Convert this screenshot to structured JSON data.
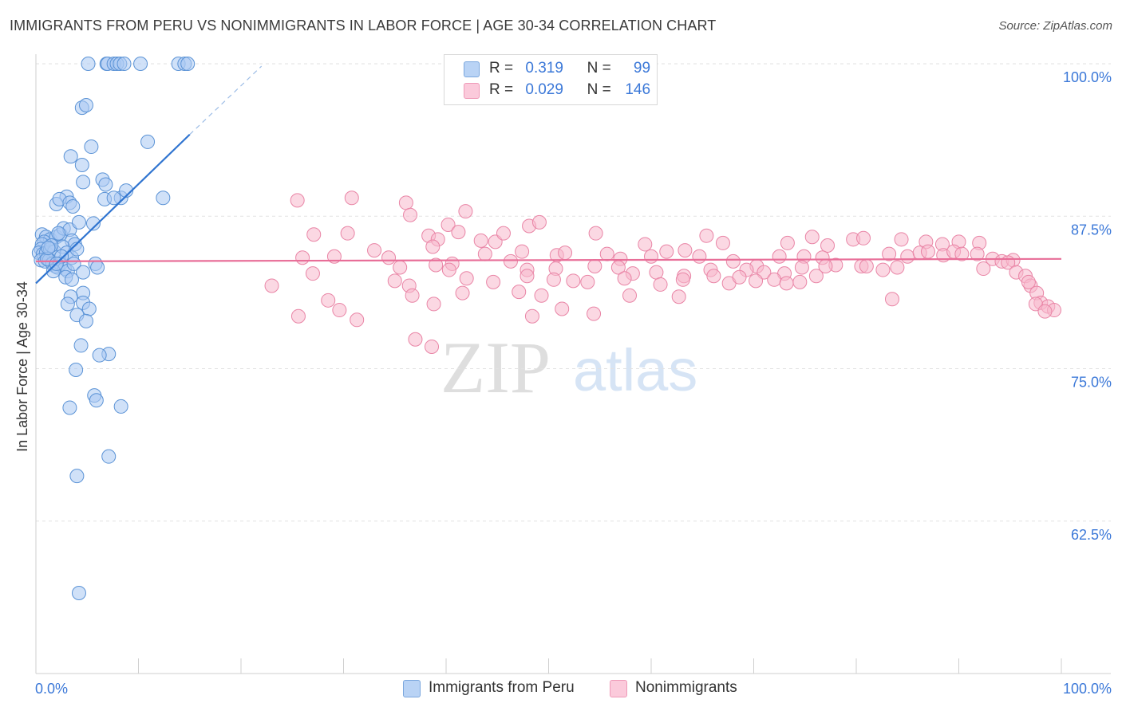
{
  "title": "IMMIGRANTS FROM PERU VS NONIMMIGRANTS IN LABOR FORCE | AGE 30-34 CORRELATION CHART",
  "source": "Source: ZipAtlas.com",
  "watermark": {
    "zip": "ZIP",
    "atlas": "atlas"
  },
  "legend": {
    "r_label": "R =",
    "n_label": "N =",
    "series": [
      {
        "name": "Immigrants from Peru",
        "r": "0.319",
        "n": "99"
      },
      {
        "name": "Nonimmigrants",
        "r": "0.029",
        "n": "146"
      }
    ]
  },
  "colors": {
    "blue_fill": "#a9c9f2",
    "blue_stroke": "#5b93d6",
    "blue_line": "#2f74d0",
    "pink_fill": "#f7b8cc",
    "pink_stroke": "#e985a6",
    "pink_line": "#e86e98",
    "axis_text": "#3b78d8"
  },
  "chart_data": {
    "type": "scatter",
    "title": "IMMIGRANTS FROM PERU VS NONIMMIGRANTS IN LABOR FORCE | AGE 30-34 CORRELATION CHART",
    "xlabel": "",
    "ylabel": "In Labor Force | Age 30-34",
    "xlim": [
      0,
      100
    ],
    "ylim": [
      50,
      100
    ],
    "x_tick_labels": [
      "0.0%",
      "100.0%"
    ],
    "y_ticks": [
      62.5,
      75.0,
      87.5,
      100.0
    ],
    "y_tick_labels": [
      "62.5%",
      "75.0%",
      "87.5%",
      "100.0%"
    ],
    "grid": true,
    "series": [
      {
        "name": "Immigrants from Peru",
        "trend": {
          "x0": 0.0,
          "y0": 82.0,
          "x1": 15.0,
          "y1": 94.2,
          "dash_to_x": 22.0,
          "dash_to_y": 99.8
        },
        "points": [
          [
            5.1,
            100
          ],
          [
            6.9,
            100
          ],
          [
            7.0,
            100
          ],
          [
            7.6,
            100
          ],
          [
            7.9,
            100
          ],
          [
            8.2,
            100
          ],
          [
            8.6,
            100
          ],
          [
            10.2,
            100
          ],
          [
            13.9,
            100
          ],
          [
            14.5,
            100
          ],
          [
            14.8,
            100
          ],
          [
            4.5,
            96.4
          ],
          [
            4.9,
            96.6
          ],
          [
            5.4,
            93.2
          ],
          [
            3.4,
            92.4
          ],
          [
            4.5,
            91.7
          ],
          [
            6.5,
            90.5
          ],
          [
            4.6,
            90.3
          ],
          [
            6.8,
            90.1
          ],
          [
            10.9,
            93.6
          ],
          [
            3.0,
            89.1
          ],
          [
            2.0,
            88.5
          ],
          [
            2.3,
            88.9
          ],
          [
            3.3,
            88.6
          ],
          [
            3.6,
            88.3
          ],
          [
            6.7,
            88.9
          ],
          [
            8.3,
            89.0
          ],
          [
            8.8,
            89.6
          ],
          [
            7.6,
            89.0
          ],
          [
            12.4,
            89.0
          ],
          [
            0.6,
            86.0
          ],
          [
            1.0,
            85.8
          ],
          [
            1.4,
            85.6
          ],
          [
            0.8,
            85.4
          ],
          [
            0.6,
            85.2
          ],
          [
            0.5,
            84.8
          ],
          [
            0.3,
            84.5
          ],
          [
            0.7,
            84.4
          ],
          [
            1.0,
            84.5
          ],
          [
            1.4,
            84.8
          ],
          [
            1.8,
            84.6
          ],
          [
            2.0,
            85.8
          ],
          [
            2.4,
            86.0
          ],
          [
            2.7,
            86.5
          ],
          [
            3.3,
            86.4
          ],
          [
            3.5,
            85.5
          ],
          [
            3.8,
            85.2
          ],
          [
            4.2,
            87.0
          ],
          [
            5.6,
            86.9
          ],
          [
            2.2,
            86.1
          ],
          [
            0.5,
            83.9
          ],
          [
            0.9,
            83.8
          ],
          [
            1.3,
            83.9
          ],
          [
            1.6,
            83.6
          ],
          [
            1.9,
            83.4
          ],
          [
            2.1,
            83.3
          ],
          [
            2.4,
            83.6
          ],
          [
            2.8,
            83.2
          ],
          [
            3.1,
            83.0
          ],
          [
            1.7,
            83.0
          ],
          [
            2.6,
            85.0
          ],
          [
            3.0,
            84.5
          ],
          [
            3.5,
            84.1
          ],
          [
            4.0,
            84.8
          ],
          [
            3.7,
            83.6
          ],
          [
            5.8,
            83.6
          ],
          [
            6.0,
            83.3
          ],
          [
            2.5,
            84.2
          ],
          [
            1.1,
            84.0
          ],
          [
            1.5,
            85.1
          ],
          [
            2.9,
            82.5
          ],
          [
            4.6,
            82.9
          ],
          [
            3.5,
            82.3
          ],
          [
            2.0,
            83.6
          ],
          [
            1.2,
            84.9
          ],
          [
            4.6,
            81.2
          ],
          [
            3.4,
            80.9
          ],
          [
            4.6,
            80.4
          ],
          [
            3.1,
            80.3
          ],
          [
            5.2,
            79.9
          ],
          [
            4.0,
            79.4
          ],
          [
            4.9,
            78.9
          ],
          [
            4.4,
            76.9
          ],
          [
            7.1,
            76.2
          ],
          [
            6.2,
            76.1
          ],
          [
            3.9,
            74.9
          ],
          [
            5.7,
            72.8
          ],
          [
            5.9,
            72.4
          ],
          [
            8.3,
            71.9
          ],
          [
            3.3,
            71.8
          ],
          [
            7.1,
            67.8
          ],
          [
            4.0,
            66.2
          ],
          [
            4.2,
            56.6
          ]
        ]
      },
      {
        "name": "Nonimmigrants",
        "trend": {
          "x0": 0.0,
          "y0": 83.8,
          "x1": 100.0,
          "y1": 84.0
        },
        "points": [
          [
            25.5,
            88.8
          ],
          [
            30.8,
            89.0
          ],
          [
            36.1,
            88.6
          ],
          [
            36.5,
            87.6
          ],
          [
            41.9,
            87.9
          ],
          [
            27.1,
            86.0
          ],
          [
            30.4,
            86.1
          ],
          [
            38.3,
            85.9
          ],
          [
            39.2,
            85.6
          ],
          [
            40.2,
            86.8
          ],
          [
            41.2,
            86.2
          ],
          [
            43.4,
            85.5
          ],
          [
            44.8,
            85.4
          ],
          [
            45.6,
            86.1
          ],
          [
            48.1,
            86.7
          ],
          [
            49.1,
            87.0
          ],
          [
            54.6,
            86.1
          ],
          [
            59.4,
            85.2
          ],
          [
            65.4,
            85.9
          ],
          [
            67.0,
            85.3
          ],
          [
            73.3,
            85.3
          ],
          [
            75.7,
            85.8
          ],
          [
            77.2,
            85.1
          ],
          [
            79.7,
            85.6
          ],
          [
            80.7,
            85.7
          ],
          [
            84.4,
            85.6
          ],
          [
            86.8,
            85.4
          ],
          [
            88.4,
            85.2
          ],
          [
            90.0,
            85.4
          ],
          [
            92.0,
            85.3
          ],
          [
            26.0,
            84.1
          ],
          [
            29.1,
            84.2
          ],
          [
            33.0,
            84.7
          ],
          [
            34.4,
            84.1
          ],
          [
            38.7,
            85.0
          ],
          [
            40.6,
            83.6
          ],
          [
            43.8,
            84.4
          ],
          [
            47.4,
            84.6
          ],
          [
            50.8,
            84.3
          ],
          [
            51.6,
            84.5
          ],
          [
            55.7,
            84.4
          ],
          [
            57.0,
            84.0
          ],
          [
            60.0,
            84.2
          ],
          [
            61.5,
            84.6
          ],
          [
            63.3,
            84.7
          ],
          [
            64.7,
            84.2
          ],
          [
            68.0,
            83.8
          ],
          [
            70.3,
            83.4
          ],
          [
            72.5,
            84.2
          ],
          [
            74.9,
            84.2
          ],
          [
            76.7,
            84.1
          ],
          [
            78.0,
            83.5
          ],
          [
            80.5,
            83.4
          ],
          [
            83.2,
            84.4
          ],
          [
            85.0,
            84.2
          ],
          [
            86.2,
            84.5
          ],
          [
            87.0,
            84.6
          ],
          [
            88.5,
            84.3
          ],
          [
            89.5,
            84.6
          ],
          [
            90.3,
            84.4
          ],
          [
            91.8,
            84.4
          ],
          [
            93.3,
            84.0
          ],
          [
            94.2,
            83.8
          ],
          [
            95.3,
            83.9
          ],
          [
            27.0,
            82.8
          ],
          [
            35.5,
            83.3
          ],
          [
            39.0,
            83.5
          ],
          [
            40.3,
            83.1
          ],
          [
            46.3,
            83.8
          ],
          [
            47.9,
            83.1
          ],
          [
            50.7,
            83.2
          ],
          [
            54.5,
            83.4
          ],
          [
            56.8,
            83.3
          ],
          [
            58.2,
            82.8
          ],
          [
            60.5,
            82.9
          ],
          [
            63.2,
            82.6
          ],
          [
            65.8,
            83.1
          ],
          [
            69.3,
            83.1
          ],
          [
            71.0,
            82.9
          ],
          [
            73.0,
            82.8
          ],
          [
            74.7,
            83.3
          ],
          [
            77.0,
            83.4
          ],
          [
            81.0,
            83.4
          ],
          [
            82.6,
            83.1
          ],
          [
            84.0,
            83.3
          ],
          [
            94.8,
            83.7
          ],
          [
            23.0,
            81.8
          ],
          [
            35.0,
            82.2
          ],
          [
            36.4,
            81.8
          ],
          [
            42.0,
            82.4
          ],
          [
            44.6,
            82.1
          ],
          [
            47.9,
            82.6
          ],
          [
            50.5,
            82.3
          ],
          [
            52.4,
            82.2
          ],
          [
            53.8,
            82.1
          ],
          [
            57.4,
            82.4
          ],
          [
            60.9,
            81.9
          ],
          [
            63.1,
            82.3
          ],
          [
            66.1,
            82.6
          ],
          [
            67.6,
            82.0
          ],
          [
            68.6,
            82.5
          ],
          [
            70.2,
            82.2
          ],
          [
            72.0,
            82.3
          ],
          [
            73.2,
            82.0
          ],
          [
            74.5,
            82.1
          ],
          [
            76.1,
            82.6
          ],
          [
            92.4,
            83.2
          ],
          [
            36.7,
            81.0
          ],
          [
            38.8,
            80.3
          ],
          [
            41.6,
            81.2
          ],
          [
            47.1,
            81.3
          ],
          [
            49.3,
            81.0
          ],
          [
            57.9,
            81.0
          ],
          [
            62.7,
            80.9
          ],
          [
            83.5,
            80.7
          ],
          [
            28.5,
            80.6
          ],
          [
            29.6,
            79.8
          ],
          [
            31.3,
            79.0
          ],
          [
            48.4,
            79.3
          ],
          [
            51.3,
            79.9
          ],
          [
            54.4,
            79.5
          ],
          [
            38.6,
            76.8
          ],
          [
            37.0,
            77.4
          ],
          [
            25.6,
            79.3
          ],
          [
            95.6,
            82.9
          ],
          [
            96.5,
            82.6
          ],
          [
            97.0,
            81.8
          ],
          [
            97.6,
            81.2
          ],
          [
            98.0,
            80.4
          ],
          [
            98.7,
            80.1
          ],
          [
            99.3,
            79.8
          ],
          [
            96.8,
            82.1
          ],
          [
            97.5,
            80.3
          ],
          [
            98.4,
            79.7
          ]
        ]
      }
    ]
  }
}
